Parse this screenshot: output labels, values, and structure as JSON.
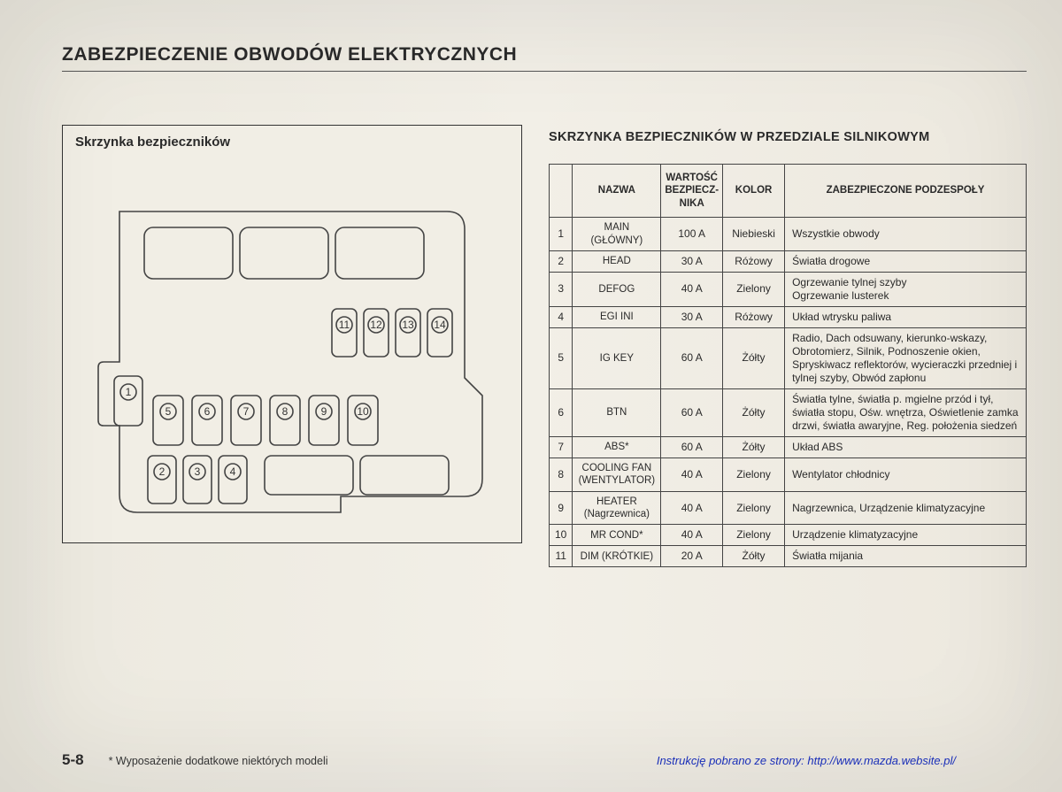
{
  "header": "ZABEZPIECZENIE OBWODÓW ELEKTRYCZNYCH",
  "diagram": {
    "title": "Skrzynka bezpieczników",
    "fuse_labels": [
      "1",
      "2",
      "3",
      "4",
      "5",
      "6",
      "7",
      "8",
      "9",
      "10",
      "11",
      "12",
      "13",
      "14"
    ],
    "stroke": "#444",
    "bg": "#f1eee5"
  },
  "table": {
    "title": "SKRZYNKA BEZPIECZNIKÓW W PRZEDZIALE SILNIKOWYM",
    "columns": [
      "NAZWA",
      "WARTOŚĆ BEZPIECZ-NIKA",
      "KOLOR",
      "ZABEZPIECZONE PODZESPOŁY"
    ],
    "rows": [
      {
        "n": "1",
        "name": "MAIN\n(GŁÓWNY)",
        "val": "100 A",
        "color": "Niebieski",
        "desc": "Wszystkie obwody"
      },
      {
        "n": "2",
        "name": "HEAD",
        "val": "30 A",
        "color": "Różowy",
        "desc": "Światła drogowe"
      },
      {
        "n": "3",
        "name": "DEFOG",
        "val": "40 A",
        "color": "Zielony",
        "desc": "Ogrzewanie tylnej szyby\nOgrzewanie lusterek"
      },
      {
        "n": "4",
        "name": "EGI INI",
        "val": "30 A",
        "color": "Różowy",
        "desc": "Układ wtrysku paliwa"
      },
      {
        "n": "5",
        "name": "IG KEY",
        "val": "60 A",
        "color": "Żółty",
        "desc": "Radio, Dach odsuwany, kierunko-wskazy, Obrotomierz, Silnik, Podnoszenie okien, Spryskiwacz reflektorów, wycieraczki przedniej i tylnej szyby, Obwód zapłonu"
      },
      {
        "n": "6",
        "name": "BTN",
        "val": "60 A",
        "color": "Żółty",
        "desc": "Światła tylne, światła p. mgielne przód i tył, światła stopu, Ośw. wnętrza, Oświetlenie zamka drzwi, światła awaryjne, Reg. położenia siedzeń"
      },
      {
        "n": "7",
        "name": "ABS*",
        "val": "60 A",
        "color": "Żółty",
        "desc": "Układ ABS"
      },
      {
        "n": "8",
        "name": "COOLING FAN\n(WENTYLATOR)",
        "val": "40 A",
        "color": "Zielony",
        "desc": "Wentylator chłodnicy"
      },
      {
        "n": "9",
        "name": "HEATER\n(Nagrzewnica)",
        "val": "40 A",
        "color": "Zielony",
        "desc": "Nagrzewnica, Urządzenie klimatyzacyjne"
      },
      {
        "n": "10",
        "name": "MR COND*",
        "val": "40 A",
        "color": "Zielony",
        "desc": "Urządzenie klimatyzacyjne"
      },
      {
        "n": "11",
        "name": "DIM (KRÓTKIE)",
        "val": "20 A",
        "color": "Żółty",
        "desc": "Światła mijania"
      }
    ]
  },
  "footer": {
    "page": "5-8",
    "note": "* Wyposażenie dodatkowe niektórych modeli",
    "source_prefix": "Instrukcję pobrano ze strony: ",
    "source_url": "http://www.mazda.website.pl/"
  }
}
